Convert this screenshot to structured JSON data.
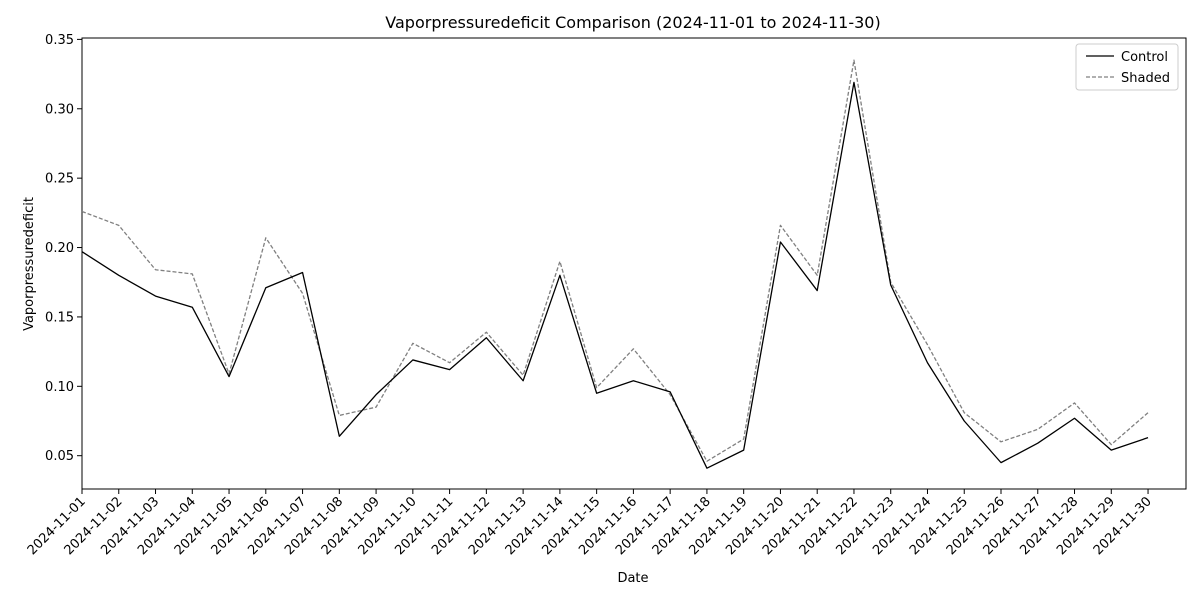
{
  "chart_data": {
    "type": "line",
    "title": "Vaporpressuredeficit Comparison (2024-11-01 to 2024-11-30)",
    "xlabel": "Date",
    "ylabel": "Vaporpressuredeficit",
    "ylim": [
      0.026,
      0.351
    ],
    "yticks": [
      "0.05",
      "0.10",
      "0.15",
      "0.20",
      "0.25",
      "0.30",
      "0.35"
    ],
    "grid": false,
    "legend_position": "top-right",
    "categories": [
      "2024-11-01",
      "2024-11-02",
      "2024-11-03",
      "2024-11-04",
      "2024-11-05",
      "2024-11-06",
      "2024-11-07",
      "2024-11-08",
      "2024-11-09",
      "2024-11-10",
      "2024-11-11",
      "2024-11-12",
      "2024-11-13",
      "2024-11-14",
      "2024-11-15",
      "2024-11-16",
      "2024-11-17",
      "2024-11-18",
      "2024-11-19",
      "2024-11-20",
      "2024-11-21",
      "2024-11-22",
      "2024-11-23",
      "2024-11-24",
      "2024-11-25",
      "2024-11-26",
      "2024-11-27",
      "2024-11-28",
      "2024-11-29",
      "2024-11-30"
    ],
    "series": [
      {
        "name": "Control",
        "color": "#000000",
        "style": "solid",
        "values": [
          0.197,
          0.18,
          0.165,
          0.157,
          0.107,
          0.171,
          0.182,
          0.064,
          0.094,
          0.119,
          0.112,
          0.135,
          0.104,
          0.18,
          0.095,
          0.104,
          0.096,
          0.041,
          0.054,
          0.204,
          0.169,
          0.319,
          0.173,
          0.117,
          0.075,
          0.045,
          0.059,
          0.077,
          0.054,
          0.063
        ]
      },
      {
        "name": "Shaded",
        "color": "#808080",
        "style": "dashed",
        "values": [
          0.226,
          0.216,
          0.184,
          0.181,
          0.109,
          0.207,
          0.167,
          0.079,
          0.085,
          0.131,
          0.117,
          0.139,
          0.108,
          0.19,
          0.099,
          0.127,
          0.094,
          0.046,
          0.062,
          0.216,
          0.18,
          0.335,
          0.175,
          0.13,
          0.081,
          0.06,
          0.069,
          0.088,
          0.058,
          0.081
        ]
      }
    ]
  }
}
